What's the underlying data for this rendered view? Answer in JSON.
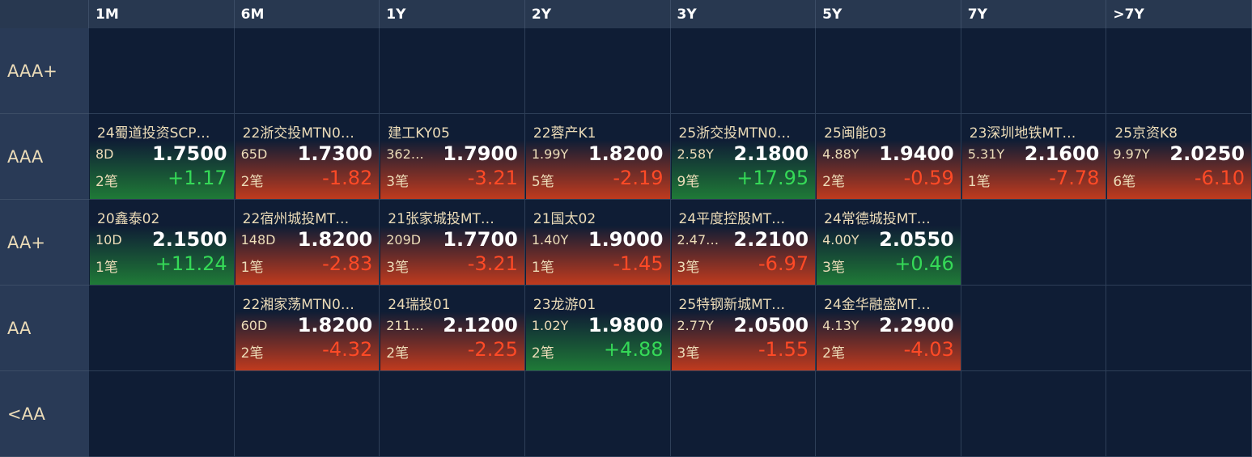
{
  "columns": [
    "1M",
    "6M",
    "1Y",
    "2Y",
    "3Y",
    "5Y",
    "7Y",
    ">7Y"
  ],
  "rows": [
    {
      "label": "AAA+",
      "cells": [
        null,
        null,
        null,
        null,
        null,
        null,
        null,
        null
      ]
    },
    {
      "label": "AAA",
      "cells": [
        {
          "name": "24蜀道投资SCP…",
          "term": "8D",
          "yield": "1.7500",
          "count": "2笔",
          "change": "+1.17"
        },
        {
          "name": "22浙交投MTN0…",
          "term": "65D",
          "yield": "1.7300",
          "count": "2笔",
          "change": "-1.82"
        },
        {
          "name": "建工KY05",
          "term": "362…",
          "yield": "1.7900",
          "count": "3笔",
          "change": "-3.21"
        },
        {
          "name": "22蓉产K1",
          "term": "1.99Y",
          "yield": "1.8200",
          "count": "5笔",
          "change": "-2.19"
        },
        {
          "name": "25浙交投MTN0…",
          "term": "2.58Y",
          "yield": "2.1800",
          "count": "9笔",
          "change": "+17.95"
        },
        {
          "name": "25闽能03",
          "term": "4.88Y",
          "yield": "1.9400",
          "count": "2笔",
          "change": "-0.59"
        },
        {
          "name": "23深圳地铁MT…",
          "term": "5.31Y",
          "yield": "2.1600",
          "count": "1笔",
          "change": "-7.78"
        },
        {
          "name": "25京资K8",
          "term": "9.97Y",
          "yield": "2.0250",
          "count": "6笔",
          "change": "-6.10"
        }
      ]
    },
    {
      "label": "AA+",
      "cells": [
        {
          "name": "20鑫泰02",
          "term": "10D",
          "yield": "2.1500",
          "count": "1笔",
          "change": "+11.24"
        },
        {
          "name": "22宿州城投MT…",
          "term": "148D",
          "yield": "1.8200",
          "count": "1笔",
          "change": "-2.83"
        },
        {
          "name": "21张家城投MT…",
          "term": "209D",
          "yield": "1.7700",
          "count": "3笔",
          "change": "-3.21"
        },
        {
          "name": "21国太02",
          "term": "1.40Y",
          "yield": "1.9000",
          "count": "1笔",
          "change": "-1.45"
        },
        {
          "name": "24平度控股MT…",
          "term": "2.47…",
          "yield": "2.2100",
          "count": "3笔",
          "change": "-6.97"
        },
        {
          "name": "24常德城投MT…",
          "term": "4.00Y",
          "yield": "2.0550",
          "count": "3笔",
          "change": "+0.46"
        },
        null,
        null
      ]
    },
    {
      "label": "AA",
      "cells": [
        null,
        {
          "name": "22湘家荡MTN0…",
          "term": "60D",
          "yield": "1.8200",
          "count": "2笔",
          "change": "-4.32"
        },
        {
          "name": "24瑞投01",
          "term": "211…",
          "yield": "2.1200",
          "count": "2笔",
          "change": "-2.25"
        },
        {
          "name": "23龙游01",
          "term": "1.02Y",
          "yield": "1.9800",
          "count": "2笔",
          "change": "+4.88"
        },
        {
          "name": "25特钢新城MT…",
          "term": "2.77Y",
          "yield": "2.0500",
          "count": "3笔",
          "change": "-1.55"
        },
        {
          "name": "24金华融盛MT…",
          "term": "4.13Y",
          "yield": "2.2900",
          "count": "2笔",
          "change": "-4.03"
        },
        null,
        null
      ]
    },
    {
      "label": "<AA",
      "cells": [
        null,
        null,
        null,
        null,
        null,
        null,
        null,
        null
      ]
    }
  ]
}
